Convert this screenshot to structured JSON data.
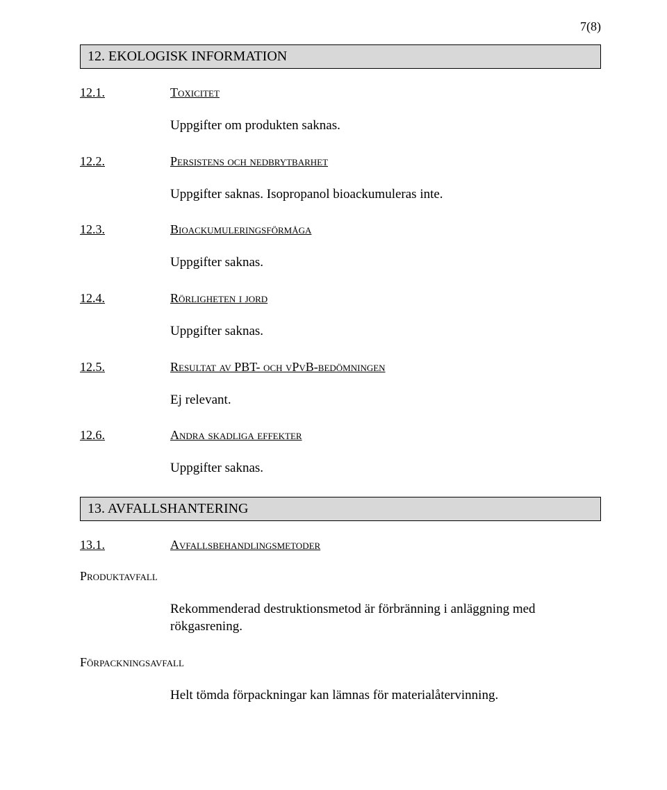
{
  "pageNumber": "7(8)",
  "section12": {
    "header": "12. EKOLOGISK INFORMATION",
    "s1": {
      "num": "12.1.",
      "label": "Toxicitet",
      "text": "Uppgifter om produkten saknas."
    },
    "s2": {
      "num": "12.2.",
      "label": "Persistens och nedbrytbarhet",
      "text": "Uppgifter saknas. Isopropanol bioackumuleras inte."
    },
    "s3": {
      "num": "12.3.",
      "label": "Bioackumuleringsförmåga",
      "text": "Uppgifter saknas."
    },
    "s4": {
      "num": "12.4.",
      "label": "Rörligheten i jord",
      "text": "Uppgifter saknas."
    },
    "s5": {
      "num": "12.5.",
      "label": "Resultat av PBT- och vPvB-bedömningen",
      "text": "Ej relevant."
    },
    "s6": {
      "num": "12.6.",
      "label": "Andra skadliga effekter",
      "text": "Uppgifter saknas."
    }
  },
  "section13": {
    "header": "13. AVFALLSHANTERING",
    "s1": {
      "num": "13.1.",
      "label": "Avfallsbehandlingsmetoder"
    },
    "produktavfall": {
      "label": "Produktavfall",
      "text": "Rekommenderad destruktionsmetod är förbränning i anläggning med rökgasrening."
    },
    "forpackningsavfall": {
      "label": "Förpackningsavfall",
      "text": "Helt tömda förpackningar kan lämnas för materialåtervinning."
    }
  }
}
